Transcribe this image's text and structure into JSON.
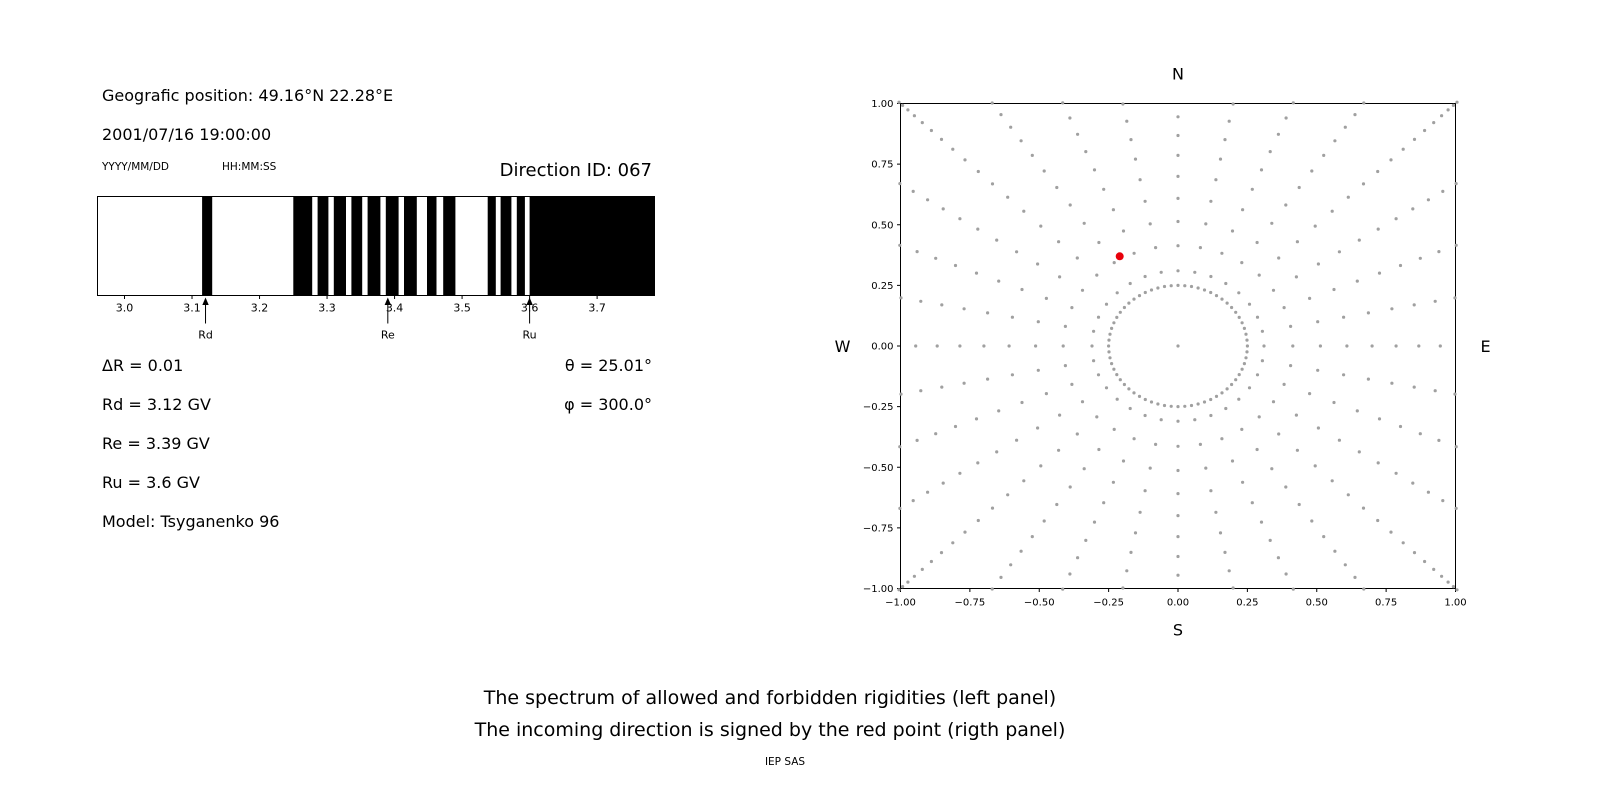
{
  "left_panel": {
    "position": "Geografic position: 49.16°N 22.28°E",
    "datetime": "2001/07/16 19:00:00",
    "date_format_label": "YYYY/MM/DD",
    "time_format_label": "HH:MM:SS",
    "direction_id": "Direction ID: 067",
    "stats": {
      "delta_r": "ΔR = 0.01",
      "rd": "Rd = 3.12 GV",
      "re": "Re = 3.39 GV",
      "ru": "Ru = 3.6 GV",
      "model": "Model: Tsyganenko 96",
      "theta": "θ = 25.01°",
      "phi": "φ = 300.0°"
    }
  },
  "captions": {
    "line1": "The spectrum of allowed and forbidden rigidities (left panel)",
    "line2": "The incoming direction is signed by the red point (rigth panel)",
    "credit": "IEP SAS"
  },
  "chart_data": [
    {
      "type": "bar",
      "name": "rigidity-spectrum",
      "description": "Spectrum of allowed (black) and forbidden (white) rigidities",
      "xlim": [
        2.96,
        3.785
      ],
      "xticks": [
        3.0,
        3.1,
        3.2,
        3.3,
        3.4,
        3.5,
        3.6,
        3.7
      ],
      "xtick_labels": [
        "3.0",
        "3.1",
        "3.2",
        "3.3",
        "3.4",
        "3.5",
        "3.6",
        "3.7"
      ],
      "allowed_bands": [
        [
          3.115,
          3.13
        ],
        [
          3.25,
          3.278
        ],
        [
          3.286,
          3.302
        ],
        [
          3.31,
          3.328
        ],
        [
          3.336,
          3.352
        ],
        [
          3.36,
          3.379
        ],
        [
          3.387,
          3.406
        ],
        [
          3.414,
          3.433
        ],
        [
          3.448,
          3.462
        ],
        [
          3.472,
          3.49
        ],
        [
          3.538,
          3.55
        ],
        [
          3.557,
          3.573
        ],
        [
          3.581,
          3.593
        ],
        [
          3.6,
          3.785
        ]
      ],
      "markers": [
        {
          "label": "Rd",
          "x": 3.12
        },
        {
          "label": "Re",
          "x": 3.39
        },
        {
          "label": "Ru",
          "x": 3.6
        }
      ],
      "band_color": "#000000",
      "background": "#ffffff"
    },
    {
      "type": "scatter",
      "name": "incoming-direction-map",
      "xlim": [
        -1.0,
        1.0
      ],
      "ylim": [
        -1.0,
        1.0
      ],
      "xticks": [
        -1.0,
        -0.75,
        -0.5,
        -0.25,
        0.0,
        0.25,
        0.5,
        0.75,
        1.0
      ],
      "xtick_labels": [
        "−1.00",
        "−0.75",
        "−0.50",
        "−0.25",
        "0.00",
        "0.25",
        "0.50",
        "0.75",
        "1.00"
      ],
      "yticks": [
        1.0,
        0.75,
        0.5,
        0.25,
        0.0,
        -0.25,
        -0.5,
        -0.75,
        -1.0
      ],
      "ytick_labels": [
        "1.00",
        "0.75",
        "0.50",
        "0.25",
        "0.00",
        "−0.25",
        "−0.50",
        "−0.75",
        "−1.00"
      ],
      "compass": {
        "top": "N",
        "bottom": "S",
        "left": "W",
        "right": "E"
      },
      "grid_pattern": {
        "ring_radius": 0.25,
        "ring_dot_count": 64,
        "center_dot": true,
        "spoke_count": 32,
        "spoke_inner_radius": 0.31,
        "spoke_outer_radius": 1.43,
        "dots_per_spoke": 18,
        "bunching_exponent": 1.7,
        "dot_color": "#a0a0a0",
        "dot_radius": 1.6
      },
      "red_point": {
        "x": -0.21,
        "y": 0.37,
        "color": "#e8000b",
        "radius": 4
      }
    }
  ]
}
